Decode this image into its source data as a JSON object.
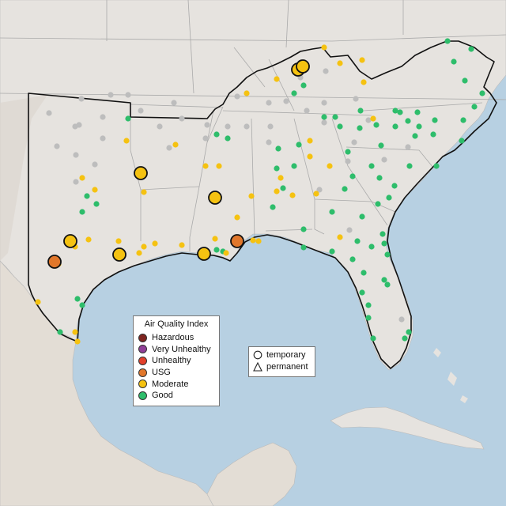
{
  "legend": {
    "title": "Air Quality Index",
    "categories": [
      {
        "key": "hazardous",
        "label": "Hazardous",
        "color": "#7e2420"
      },
      {
        "key": "very_unhealthy",
        "label": "Very Unhealthy",
        "color": "#8f3f97"
      },
      {
        "key": "unhealthy",
        "label": "Unhealthy",
        "color": "#e2402b"
      },
      {
        "key": "usg",
        "label": "USG",
        "color": "#e1772b"
      },
      {
        "key": "moderate",
        "label": "Moderate",
        "color": "#f5c211"
      },
      {
        "key": "good",
        "label": "Good",
        "color": "#2ebd6b"
      }
    ]
  },
  "site_types": {
    "temporary_label": "temporary",
    "permanent_label": "permanent",
    "temporary_icon": "circle-outline-icon",
    "permanent_icon": "triangle-outline-icon"
  },
  "colors": {
    "ocean": "#b7d0e2",
    "land": "#e6e3df",
    "terrain": "#ddd9d3",
    "no_data": "#bdbdbd",
    "region_outline": "#111111"
  }
}
